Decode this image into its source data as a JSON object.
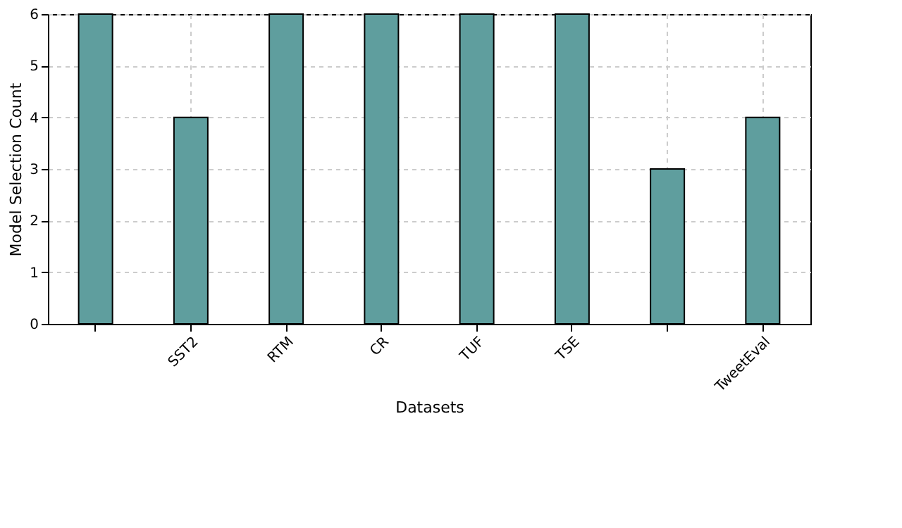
{
  "chart_data": {
    "type": "bar",
    "xlabel": "Datasets",
    "ylabel": "Model Selection Count",
    "categories": [
      null,
      "SST2",
      "RTM",
      "CR",
      "TUF",
      "TSE",
      null,
      "TweetEval"
    ],
    "values": [
      6,
      4,
      6,
      6,
      6,
      6,
      3,
      4
    ],
    "color": "#5f9e9e",
    "ylim": [
      0,
      6
    ],
    "yticks": [
      0,
      1,
      2,
      3,
      4,
      5,
      6
    ],
    "grid": true
  }
}
